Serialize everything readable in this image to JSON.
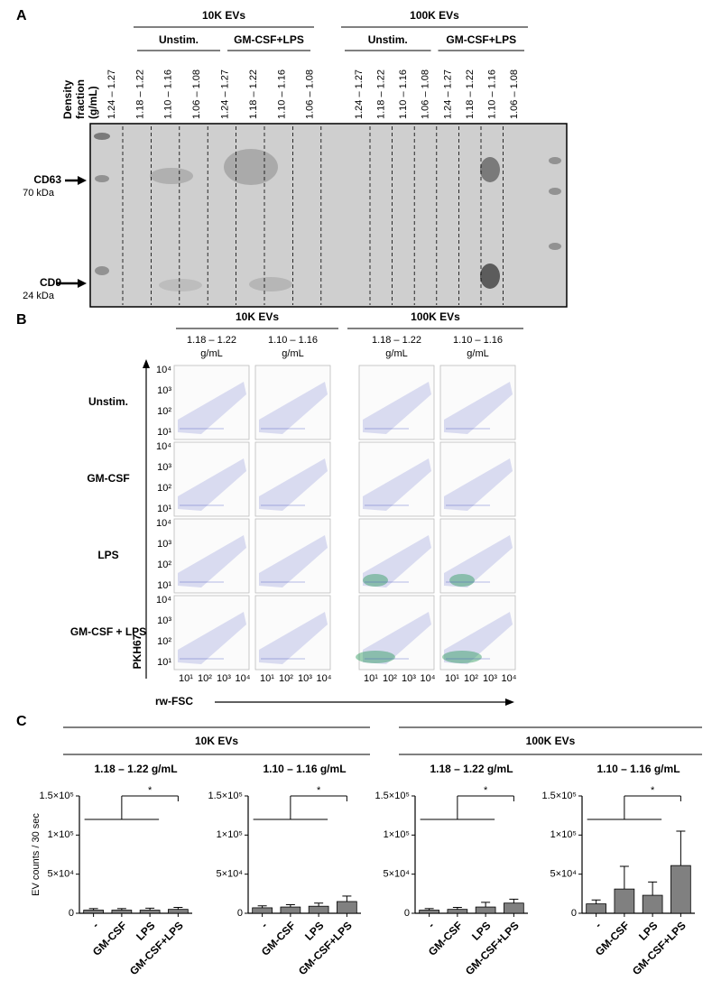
{
  "panel_a": {
    "letter": "A",
    "groups": [
      {
        "title": "10K EVs",
        "conditions": [
          "Unstim.",
          "GM-CSF+LPS"
        ]
      },
      {
        "title": "100K EVs",
        "conditions": [
          "Unstim.",
          "GM-CSF+LPS"
        ]
      }
    ],
    "lane_fractions": [
      "1.24 – 1.27",
      "1.18 – 1.22",
      "1.10 – 1.16",
      "1.06 – 1.08",
      "1.24 – 1.27",
      "1.18 – 1.22",
      "1.10 – 1.16",
      "1.06 – 1.08",
      "1.24 – 1.27",
      "1.18 – 1.22",
      "1.10 – 1.16",
      "1.06 – 1.08",
      "1.24 – 1.27",
      "1.18 – 1.22",
      "1.10 – 1.16",
      "1.06 – 1.08"
    ],
    "fraction_label": [
      "Density",
      "fraction",
      "(g/mL)"
    ],
    "markers": [
      {
        "name": "CD63",
        "size": "70 kDa"
      },
      {
        "name": "CD9",
        "size": "24 kDa"
      }
    ]
  },
  "panel_b": {
    "letter": "B",
    "groups": [
      "10K EVs",
      "100K EVs"
    ],
    "columns": [
      {
        "range": "1.18 – 1.22",
        "unit": "g/mL"
      },
      {
        "range": "1.10 – 1.16",
        "unit": "g/mL"
      },
      {
        "range": "1.18 – 1.22",
        "unit": "g/mL"
      },
      {
        "range": "1.10 – 1.16",
        "unit": "g/mL"
      }
    ],
    "rows": [
      "Unstim.",
      "GM-CSF",
      "LPS",
      "GM-CSF + LPS"
    ],
    "ticks": [
      "10¹",
      "10²",
      "10³",
      "10⁴"
    ],
    "y_label": "PKH67",
    "x_label": "rw-FSC"
  },
  "panel_c": {
    "letter": "C",
    "groups": [
      "10K EVs",
      "100K EVs"
    ]
  },
  "chart_data": [
    {
      "type": "bar",
      "title": "1.18 – 1.22 g/mL",
      "y_label": "EV counts / 30 sec",
      "categories": [
        "-",
        "GM-CSF",
        "LPS",
        "GM-CSF+LPS"
      ],
      "values": [
        4000,
        4000,
        4000,
        5000
      ],
      "errors": [
        2000,
        2000,
        2500,
        2500
      ],
      "color": "#808080",
      "ylim": [
        0,
        150000
      ],
      "yticks": [
        0,
        {
          "value": 50000,
          "label": "5×10⁴"
        },
        {
          "value": 100000,
          "label": "1×10⁵"
        },
        {
          "value": 150000,
          "label": "1.5×10⁵"
        }
      ],
      "annotation": "*"
    },
    {
      "type": "bar",
      "title": "1.10 – 1.16 g/mL",
      "categories": [
        "-",
        "GM-CSF",
        "LPS",
        "GM-CSF+LPS"
      ],
      "values": [
        7000,
        8000,
        9000,
        15000
      ],
      "errors": [
        2500,
        3000,
        4000,
        7000
      ],
      "color": "#808080",
      "ylim": [
        0,
        150000
      ],
      "yticks": [
        0,
        {
          "value": 50000,
          "label": "5×10⁴"
        },
        {
          "value": 100000,
          "label": "1×10⁵"
        },
        {
          "value": 150000,
          "label": "1.5×10⁵"
        }
      ],
      "annotation": "*"
    },
    {
      "type": "bar",
      "title": "1.18 – 1.22 g/mL",
      "categories": [
        "-",
        "GM-CSF",
        "LPS",
        "GM-CSF+LPS"
      ],
      "values": [
        4000,
        5000,
        8000,
        13000
      ],
      "errors": [
        2000,
        2500,
        6000,
        5000
      ],
      "color": "#808080",
      "ylim": [
        0,
        150000
      ],
      "yticks": [
        0,
        {
          "value": 50000,
          "label": "5×10⁴"
        },
        {
          "value": 100000,
          "label": "1×10⁵"
        },
        {
          "value": 150000,
          "label": "1.5×10⁵"
        }
      ],
      "annotation": "*"
    },
    {
      "type": "bar",
      "title": "1.10 – 1.16 g/mL",
      "categories": [
        "-",
        "GM-CSF",
        "LPS",
        "GM-CSF+LPS"
      ],
      "values": [
        12000,
        31000,
        23000,
        61000
      ],
      "errors": [
        5000,
        29000,
        17000,
        44000
      ],
      "color": "#808080",
      "ylim": [
        0,
        150000
      ],
      "yticks": [
        0,
        {
          "value": 50000,
          "label": "5×10⁴"
        },
        {
          "value": 100000,
          "label": "1×10⁵"
        },
        {
          "value": 150000,
          "label": "1.5×10⁵"
        }
      ],
      "annotation": "*"
    }
  ]
}
